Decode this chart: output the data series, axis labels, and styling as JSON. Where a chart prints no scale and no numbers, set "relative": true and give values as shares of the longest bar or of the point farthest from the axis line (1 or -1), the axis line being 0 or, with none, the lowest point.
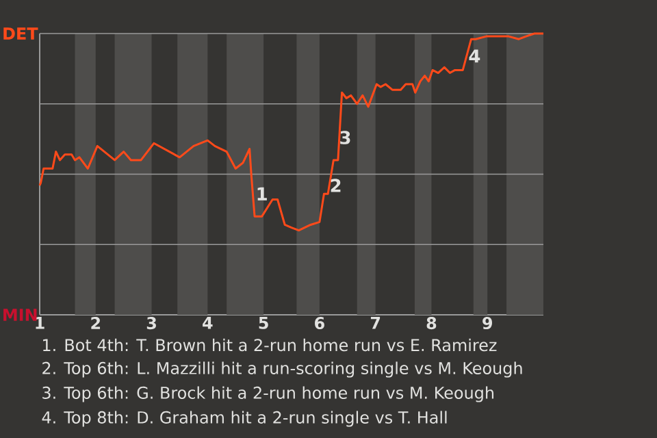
{
  "chart_data": {
    "type": "line",
    "x": [
      1.0,
      1.02,
      1.07,
      1.23,
      1.29,
      1.36,
      1.45,
      1.57,
      1.63,
      1.71,
      1.86,
      2.03,
      2.34,
      2.5,
      2.63,
      2.81,
      3.04,
      3.5,
      3.75,
      4.0,
      4.13,
      4.34,
      4.5,
      4.63,
      4.75,
      4.78,
      4.84,
      4.97,
      5.16,
      5.25,
      5.38,
      5.5,
      5.63,
      5.84,
      6.0,
      6.08,
      6.15,
      6.25,
      6.33,
      6.4,
      6.48,
      6.56,
      6.67,
      6.77,
      6.87,
      7.02,
      7.09,
      7.18,
      7.3,
      7.45,
      7.54,
      7.66,
      7.71,
      7.8,
      7.88,
      7.95,
      8.02,
      8.12,
      8.23,
      8.33,
      8.42,
      8.56,
      8.71,
      8.79,
      8.98,
      9.38,
      9.56,
      9.69,
      9.84,
      10.0
    ],
    "series": [
      {
        "color": "#ff4a1a",
        "values": [
          0.46,
          0.47,
          0.52,
          0.52,
          0.58,
          0.55,
          0.57,
          0.57,
          0.55,
          0.56,
          0.52,
          0.6,
          0.55,
          0.58,
          0.55,
          0.55,
          0.61,
          0.56,
          0.6,
          0.62,
          0.6,
          0.58,
          0.52,
          0.54,
          0.59,
          0.5,
          0.35,
          0.35,
          0.41,
          0.41,
          0.32,
          0.31,
          0.3,
          0.32,
          0.33,
          0.43,
          0.43,
          0.55,
          0.55,
          0.79,
          0.77,
          0.78,
          0.75,
          0.78,
          0.74,
          0.82,
          0.81,
          0.82,
          0.8,
          0.8,
          0.82,
          0.82,
          0.79,
          0.83,
          0.85,
          0.83,
          0.87,
          0.86,
          0.88,
          0.86,
          0.87,
          0.87,
          0.98,
          0.98,
          0.99,
          0.99,
          0.98,
          0.99,
          1.0,
          1.0
        ]
      }
    ],
    "relative": true,
    "xlim": [
      1,
      10
    ],
    "xticks": [
      1,
      2,
      3,
      4,
      5,
      6,
      7,
      8,
      9
    ],
    "grid": "y",
    "bands": [
      {
        "axis": "x",
        "from": 1.63,
        "to": 2,
        "color": "#4e4d4b"
      },
      {
        "axis": "x",
        "from": 2.34,
        "to": 3,
        "color": "#4e4d4b"
      },
      {
        "axis": "x",
        "from": 3.46,
        "to": 4,
        "color": "#4e4d4b"
      },
      {
        "axis": "x",
        "from": 4.34,
        "to": 5,
        "color": "#4e4d4b"
      },
      {
        "axis": "x",
        "from": 5.59,
        "to": 6,
        "color": "#4e4d4b"
      },
      {
        "axis": "x",
        "from": 6.67,
        "to": 7,
        "color": "#4e4d4b"
      },
      {
        "axis": "x",
        "from": 7.7,
        "to": 8,
        "color": "#4e4d4b"
      },
      {
        "axis": "x",
        "from": 8.75,
        "to": 9,
        "color": "#4e4d4b"
      },
      {
        "axis": "x",
        "from": 9.34,
        "to": 10,
        "color": "#4e4d4b"
      }
    ],
    "annotations": [
      "DET",
      "MIN",
      {
        "text": "1",
        "x": 4.97,
        "y": 0.43
      },
      {
        "text": "2",
        "x": 6.29,
        "y": 0.46
      },
      {
        "text": "3",
        "x": 6.46,
        "y": 0.63
      },
      {
        "text": "4",
        "x": 8.77,
        "y": 0.92
      },
      "1. Bot 4th: T. Brown hit a 2-run home run vs E. Ramirez",
      "2. Top 6th: L. Mazzilli hit a run-scoring single vs M. Keough",
      "3. Top 6th: G. Brock hit a 2-run home run vs M. Keough",
      "4. Top 8th: D. Graham hit a 2-run single vs T. Hall"
    ]
  }
}
